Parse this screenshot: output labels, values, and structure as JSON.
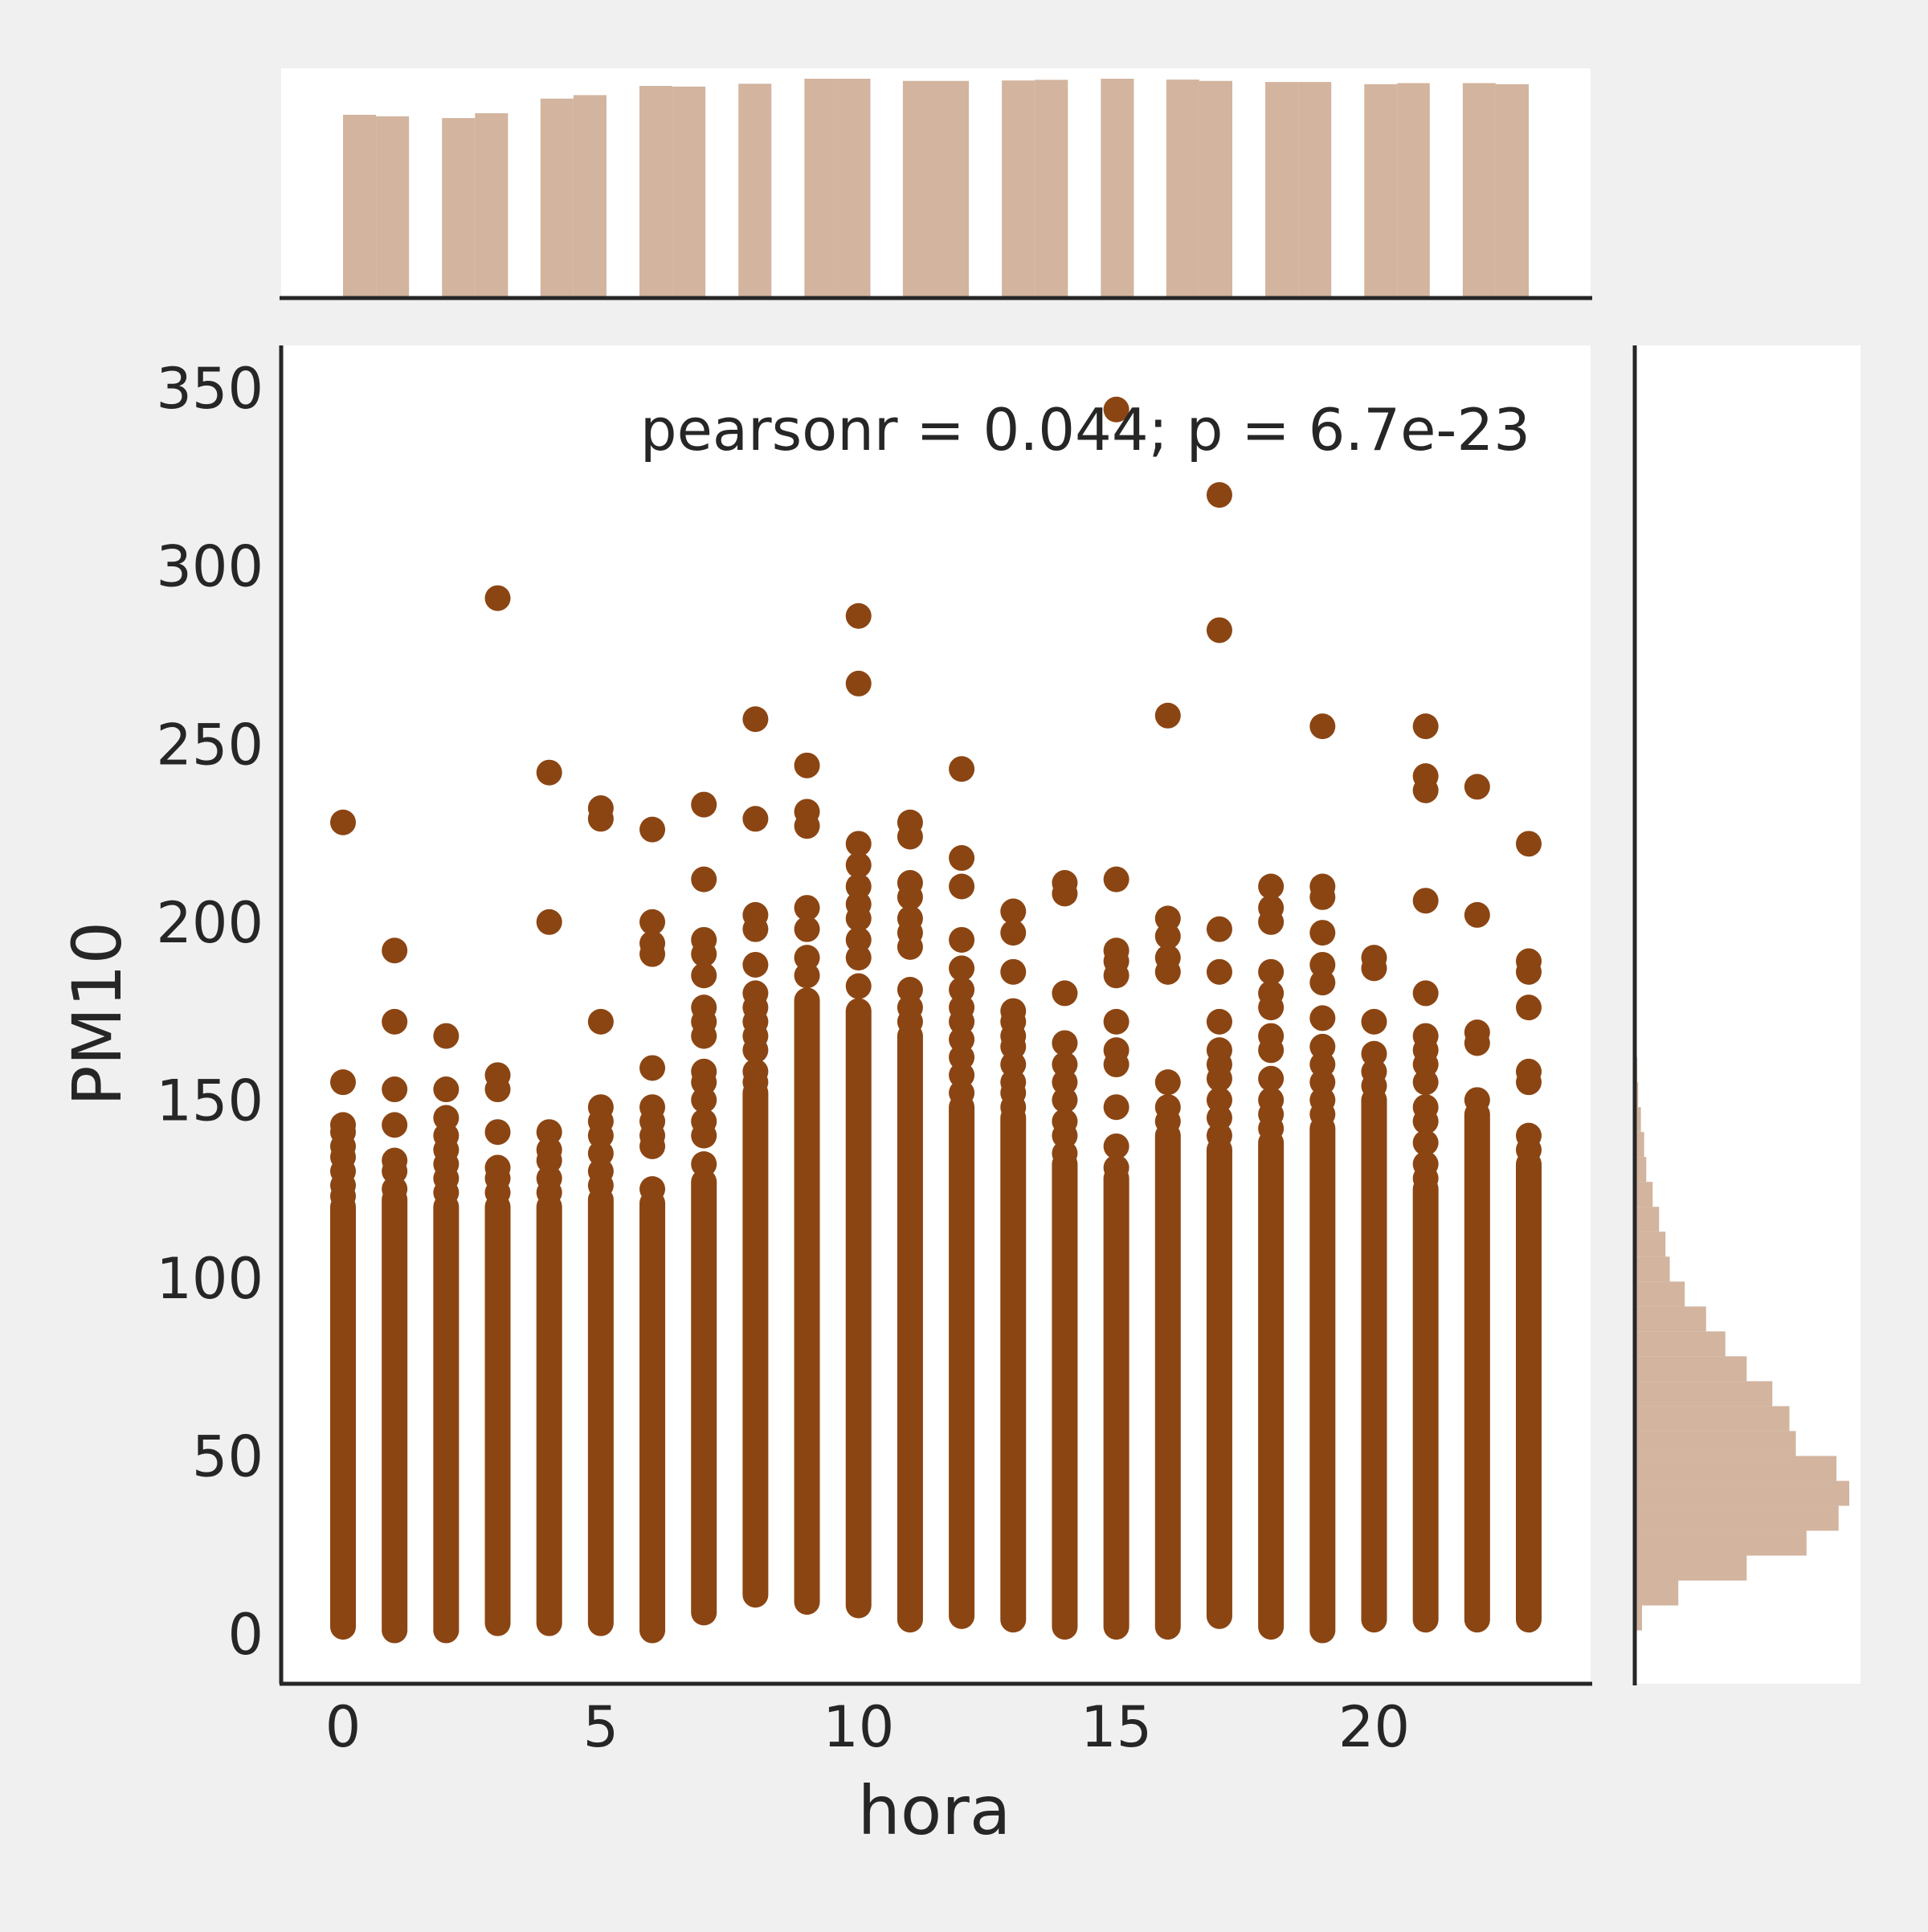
{
  "chart_data": {
    "type": "scatter",
    "title": "",
    "xlabel": "hora",
    "ylabel": "PM10",
    "annotation": "pearsonr = 0.044; p = 6.7e-23",
    "xlim": [
      -1.2,
      24.2
    ],
    "ylim": [
      -14,
      362
    ],
    "xticks": [
      0,
      5,
      10,
      15,
      20
    ],
    "yticks": [
      0,
      50,
      100,
      150,
      200,
      250,
      300,
      350
    ],
    "grid": false,
    "legend": "none",
    "colors": {
      "point": "#8b4513",
      "hist": "#d2b49f",
      "axis": "#262626",
      "panel": "#ffffff",
      "background": "#f0f0f0"
    },
    "columns": [
      {
        "hora": 0,
        "min": 2,
        "max": 120,
        "outliers": [
          123,
          126,
          130,
          134,
          137,
          141,
          143,
          155,
          228
        ]
      },
      {
        "hora": 1,
        "min": 1,
        "max": 122,
        "outliers": [
          125,
          130,
          133,
          143,
          153,
          172,
          192
        ]
      },
      {
        "hora": 2,
        "min": 1,
        "max": 120,
        "outliers": [
          124,
          128,
          132,
          136,
          140,
          145,
          153,
          168
        ]
      },
      {
        "hora": 3,
        "min": 3,
        "max": 120,
        "outliers": [
          124,
          128,
          131,
          141,
          153,
          157,
          291
        ]
      },
      {
        "hora": 4,
        "min": 3,
        "max": 120,
        "outliers": [
          124,
          128,
          133,
          136,
          141,
          200,
          242
        ]
      },
      {
        "hora": 5,
        "min": 3,
        "max": 122,
        "outliers": [
          126,
          130,
          135,
          140,
          144,
          148,
          172,
          229,
          232
        ]
      },
      {
        "hora": 6,
        "min": 1,
        "max": 121,
        "outliers": [
          125,
          137,
          140,
          144,
          148,
          159,
          191,
          194,
          200,
          226
        ]
      },
      {
        "hora": 7,
        "min": 6,
        "max": 127,
        "outliers": [
          132,
          140,
          144,
          150,
          155,
          158,
          168,
          172,
          176,
          185,
          191,
          195,
          212,
          233
        ]
      },
      {
        "hora": 8,
        "min": 11,
        "max": 152,
        "outliers": [
          155,
          158,
          164,
          168,
          172,
          176,
          180,
          188,
          198,
          202,
          229,
          257
        ]
      },
      {
        "hora": 9,
        "min": 9,
        "max": 178,
        "outliers": [
          185,
          190,
          198,
          204,
          227,
          231,
          244
        ]
      },
      {
        "hora": 10,
        "min": 8,
        "max": 175,
        "outliers": [
          182,
          190,
          195,
          201,
          205,
          210,
          216,
          222,
          267,
          286
        ]
      },
      {
        "hora": 11,
        "min": 4,
        "max": 168,
        "outliers": [
          172,
          176,
          181,
          193,
          197,
          201,
          207,
          211,
          224,
          228
        ]
      },
      {
        "hora": 12,
        "min": 5,
        "max": 148,
        "outliers": [
          152,
          157,
          162,
          167,
          172,
          176,
          181,
          187,
          195,
          210,
          218,
          243
        ]
      },
      {
        "hora": 13,
        "min": 4,
        "max": 145,
        "outliers": [
          148,
          152,
          155,
          160,
          165,
          168,
          172,
          175,
          186,
          197,
          203
        ]
      },
      {
        "hora": 14,
        "min": 2,
        "max": 132,
        "outliers": [
          135,
          140,
          144,
          150,
          155,
          160,
          166,
          180,
          208,
          211
        ]
      },
      {
        "hora": 15,
        "min": 2,
        "max": 128,
        "outliers": [
          131,
          137,
          148,
          160,
          164,
          172,
          185,
          189,
          192,
          212,
          344
        ]
      },
      {
        "hora": 16,
        "min": 2,
        "max": 140,
        "outliers": [
          144,
          148,
          155,
          186,
          190,
          196,
          201,
          258
        ]
      },
      {
        "hora": 17,
        "min": 5,
        "max": 136,
        "outliers": [
          140,
          145,
          150,
          156,
          160,
          164,
          172,
          186,
          198,
          282,
          320
        ]
      },
      {
        "hora": 18,
        "min": 2,
        "max": 138,
        "outliers": [
          142,
          146,
          150,
          156,
          164,
          168,
          176,
          180,
          186,
          200,
          204,
          210
        ]
      },
      {
        "hora": 19,
        "min": 1,
        "max": 142,
        "outliers": [
          146,
          150,
          155,
          160,
          165,
          173,
          183,
          188,
          197,
          207,
          210,
          255
        ]
      },
      {
        "hora": 20,
        "min": 4,
        "max": 150,
        "outliers": [
          154,
          158,
          163,
          172,
          187,
          190
        ]
      },
      {
        "hora": 21,
        "min": 4,
        "max": 125,
        "outliers": [
          128,
          132,
          138,
          144,
          148,
          155,
          160,
          164,
          168,
          180,
          206,
          237,
          241,
          255
        ]
      },
      {
        "hora": 22,
        "min": 4,
        "max": 146,
        "outliers": [
          150,
          166,
          169,
          202,
          238
        ]
      },
      {
        "hora": 23,
        "min": 4,
        "max": 132,
        "outliers": [
          136,
          140,
          155,
          158,
          176,
          186,
          189,
          222
        ]
      }
    ],
    "marginal_x": {
      "bins": [
        {
          "x0": 0.0,
          "x1": 0.64,
          "h": 0.835
        },
        {
          "x0": 0.64,
          "x1": 1.28,
          "h": 0.828
        },
        {
          "x0": 1.92,
          "x1": 2.56,
          "h": 0.82
        },
        {
          "x0": 2.56,
          "x1": 3.2,
          "h": 0.842
        },
        {
          "x0": 3.83,
          "x1": 4.47,
          "h": 0.909
        },
        {
          "x0": 4.47,
          "x1": 5.11,
          "h": 0.925
        },
        {
          "x0": 5.75,
          "x1": 6.39,
          "h": 0.967
        },
        {
          "x0": 6.39,
          "x1": 7.03,
          "h": 0.964
        },
        {
          "x0": 7.67,
          "x1": 8.31,
          "h": 0.977
        },
        {
          "x0": 8.95,
          "x1": 9.59,
          "h": 1.0
        },
        {
          "x0": 9.59,
          "x1": 10.23,
          "h": 1.0
        },
        {
          "x0": 10.86,
          "x1": 11.5,
          "h": 0.99
        },
        {
          "x0": 11.5,
          "x1": 12.14,
          "h": 0.99
        },
        {
          "x0": 12.78,
          "x1": 13.42,
          "h": 0.992
        },
        {
          "x0": 13.42,
          "x1": 14.06,
          "h": 0.995
        },
        {
          "x0": 14.7,
          "x1": 15.34,
          "h": 1.0
        },
        {
          "x0": 15.97,
          "x1": 16.61,
          "h": 0.996
        },
        {
          "x0": 16.61,
          "x1": 17.25,
          "h": 0.99
        },
        {
          "x0": 17.89,
          "x1": 18.53,
          "h": 0.985
        },
        {
          "x0": 18.53,
          "x1": 19.17,
          "h": 0.985
        },
        {
          "x0": 19.81,
          "x1": 20.45,
          "h": 0.975
        },
        {
          "x0": 20.45,
          "x1": 21.08,
          "h": 0.98
        },
        {
          "x0": 21.72,
          "x1": 22.36,
          "h": 0.98
        },
        {
          "x0": 22.36,
          "x1": 23.0,
          "h": 0.975
        }
      ]
    },
    "marginal_y": {
      "bins": [
        {
          "y0": 1,
          "y1": 8,
          "h": 0.03
        },
        {
          "y0": 8,
          "y1": 15,
          "h": 0.2
        },
        {
          "y0": 15,
          "y1": 22,
          "h": 0.52
        },
        {
          "y0": 22,
          "y1": 29,
          "h": 0.8
        },
        {
          "y0": 29,
          "y1": 36,
          "h": 0.95
        },
        {
          "y0": 36,
          "y1": 43,
          "h": 1.0
        },
        {
          "y0": 43,
          "y1": 50,
          "h": 0.94
        },
        {
          "y0": 50,
          "y1": 57,
          "h": 0.75
        },
        {
          "y0": 57,
          "y1": 64,
          "h": 0.72
        },
        {
          "y0": 64,
          "y1": 71,
          "h": 0.64
        },
        {
          "y0": 71,
          "y1": 78,
          "h": 0.52
        },
        {
          "y0": 78,
          "y1": 85,
          "h": 0.42
        },
        {
          "y0": 85,
          "y1": 92,
          "h": 0.33
        },
        {
          "y0": 92,
          "y1": 99,
          "h": 0.23
        },
        {
          "y0": 99,
          "y1": 106,
          "h": 0.16
        },
        {
          "y0": 106,
          "y1": 113,
          "h": 0.14
        },
        {
          "y0": 113,
          "y1": 120,
          "h": 0.11
        },
        {
          "y0": 120,
          "y1": 127,
          "h": 0.08
        },
        {
          "y0": 127,
          "y1": 134,
          "h": 0.05
        },
        {
          "y0": 134,
          "y1": 141,
          "h": 0.04
        },
        {
          "y0": 141,
          "y1": 148,
          "h": 0.025
        },
        {
          "y0": 148,
          "y1": 155,
          "h": 0.012
        },
        {
          "y0": 155,
          "y1": 162,
          "h": 0.008
        }
      ]
    }
  }
}
